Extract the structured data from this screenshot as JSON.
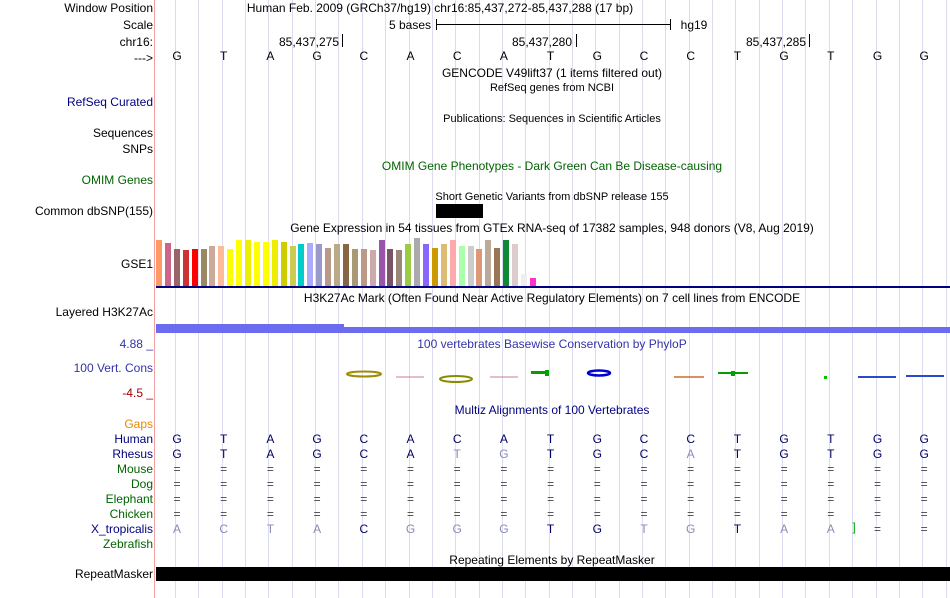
{
  "labels": {
    "window_position": "Window Position",
    "scale": "Scale",
    "chrom": "chr16:",
    "strand": "--->",
    "refseq": "RefSeq Curated",
    "sequences": "Sequences",
    "snps": "SNPs",
    "omim": "OMIM Genes",
    "dbsnp": "Common dbSNP(155)",
    "gse1": "GSE1",
    "layered": "Layered H3K27Ac",
    "cons_max": "4.88 _",
    "cons": "100 Vert. Cons",
    "cons_min": "-4.5 _",
    "gaps": "Gaps",
    "species": [
      "Human",
      "Rhesus",
      "Mouse",
      "Dog",
      "Elephant",
      "Chicken",
      "X_tropicalis",
      "Zebrafish"
    ],
    "repeatmasker": "RepeatMasker"
  },
  "header": {
    "position_text": "Human Feb. 2009 (GRCh37/hg19)   chr16:85,437,272-85,437,288 (17 bp)",
    "scale_left": "5 bases",
    "scale_right": "hg19",
    "coord1": "85,437,275",
    "coord2": "85,437,280",
    "coord3": "85,437,285"
  },
  "sequence": [
    "G",
    "T",
    "A",
    "G",
    "C",
    "A",
    "C",
    "A",
    "T",
    "G",
    "C",
    "C",
    "T",
    "G",
    "T",
    "G",
    "G"
  ],
  "tracks": {
    "gencode": "GENCODE V49lift37 (1 items filtered out)",
    "refseq": "RefSeq genes from NCBI",
    "publications": "Publications: Sequences in Scientific Articles",
    "omim": "OMIM Gene Phenotypes - Dark Green Can Be Disease-causing",
    "dbsnp": "Short Genetic Variants from dbSNP release 155",
    "gtex": "Gene Expression in 54 tissues from GTEx RNA-seq of 17382 samples, 948 donors (V8, Aug 2019)",
    "h3k27ac": "H3K27Ac Mark (Often Found Near Active Regulatory Elements) on 7 cell lines from ENCODE",
    "phylop": "100 vertebrates Basewise Conservation by PhyloP",
    "multiz": "Multiz Alignments of 100 Vertebrates",
    "repeat": "Repeating Elements by RepeatMasker"
  },
  "alignment": {
    "rhesus": [
      "G",
      "T",
      "A",
      "G",
      "C",
      "A",
      "T",
      "G",
      "T",
      "G",
      "C",
      "A",
      "T",
      "G",
      "T",
      "G",
      "G"
    ],
    "mouse": [
      "=",
      "=",
      "=",
      "=",
      "=",
      "=",
      "=",
      "=",
      "=",
      "=",
      "=",
      "=",
      "=",
      "=",
      "=",
      "=",
      "="
    ],
    "dog": [
      "=",
      "=",
      "=",
      "=",
      "=",
      "=",
      "=",
      "=",
      "=",
      "=",
      "=",
      "=",
      "=",
      "=",
      "=",
      "=",
      "="
    ],
    "elephant": [
      "=",
      "=",
      "=",
      "=",
      "=",
      "=",
      "=",
      "=",
      "=",
      "=",
      "=",
      "=",
      "=",
      "=",
      "=",
      "=",
      "="
    ],
    "chicken": [
      "=",
      "=",
      "=",
      "=",
      "=",
      "=",
      "=",
      "=",
      "=",
      "=",
      "=",
      "=",
      "=",
      "=",
      "=",
      "=",
      "="
    ],
    "xtrop": [
      "A",
      "C",
      "T",
      "A",
      "C",
      "G",
      "G",
      "G",
      "T",
      "G",
      "T",
      "G",
      "T",
      "A",
      "A",
      "=",
      "="
    ]
  },
  "colors": {
    "label_blue": "#000080",
    "omim_green": "#006400",
    "gaps_orange": "#e68a00",
    "cons_blue": "#3333aa",
    "h3k27ac_purple": "#6c6cf0"
  }
}
